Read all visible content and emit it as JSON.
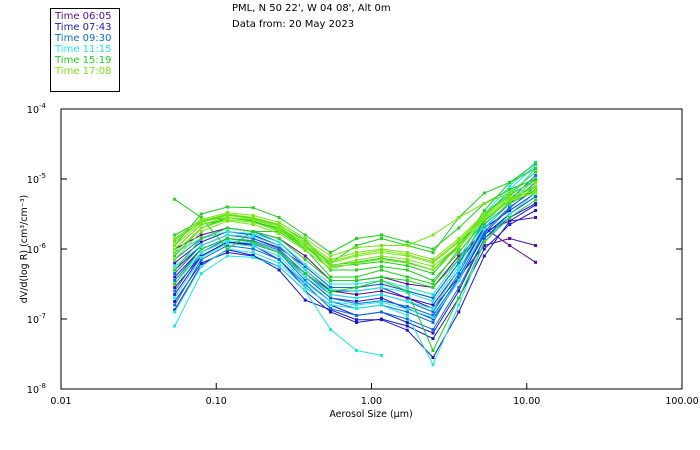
{
  "header": {
    "line1": "PML, N 50 22', W 04 08', Alt 0m",
    "line2": "Data from: 20 May 2023"
  },
  "legend": [
    {
      "label": "Time 06:05",
      "color": "#5a0a96"
    },
    {
      "label": "Time 07:43",
      "color": "#1a1acc"
    },
    {
      "label": "Time 09:30",
      "color": "#0a6ee0"
    },
    {
      "label": "Time 11:15",
      "color": "#1ee6e6"
    },
    {
      "label": "Time 15:19",
      "color": "#1ed21e"
    },
    {
      "label": "Time 17:08",
      "color": "#78e614"
    }
  ],
  "chart_data": {
    "type": "line",
    "xscale": "log",
    "yscale": "log",
    "xlabel": "Aerosol Size (µm)",
    "ylabel": "dV/d(log R) (cm³/cm⁻³)",
    "xlim": [
      0.01,
      100
    ],
    "ylim": [
      1e-08,
      0.0001
    ],
    "xticks": [
      {
        "value": 0.01,
        "label": "0.01"
      },
      {
        "value": 0.1,
        "label": "0.10"
      },
      {
        "value": 1,
        "label": "1.00"
      },
      {
        "value": 10,
        "label": "10.00"
      },
      {
        "value": 100,
        "label": "100.00"
      }
    ],
    "yticks": [
      {
        "value": 0.0001,
        "base": "10",
        "exp": "-4"
      },
      {
        "value": 1e-05,
        "base": "10",
        "exp": "-5"
      },
      {
        "value": 1e-06,
        "base": "10",
        "exp": "-6"
      },
      {
        "value": 1e-07,
        "base": "10",
        "exp": "-7"
      },
      {
        "value": 1e-08,
        "base": "10",
        "exp": "-8"
      }
    ],
    "grid": false,
    "legend_position": "top-left",
    "x": [
      0.054,
      0.08,
      0.118,
      0.173,
      0.254,
      0.374,
      0.545,
      0.8,
      1.16,
      1.7,
      2.49,
      3.65,
      5.33,
      7.77,
      11.4
    ],
    "value_units": "log10 of dV/d(log R)",
    "series": [
      {
        "name": "Time 06:05",
        "color": "#5a0a96",
        "curves": [
          [
            -6.3,
            -5.95,
            -5.8,
            -5.85,
            -5.98,
            -6.25,
            -6.55,
            -6.55,
            -6.5,
            -6.6,
            -6.7,
            -6.2,
            -5.7,
            -5.95,
            -6.19
          ],
          [
            -6.55,
            -6.1,
            -5.9,
            -5.93,
            -6.05,
            -6.35,
            -6.6,
            -6.65,
            -6.6,
            -6.7,
            -6.85,
            -6.4,
            -5.95,
            -5.85,
            -5.95
          ],
          [
            -6.0,
            -5.8,
            -5.7,
            -5.75,
            -5.85,
            -6.1,
            -6.45,
            -6.45,
            -6.4,
            -6.5,
            -6.55,
            -6.1,
            -5.75,
            -5.6,
            -5.55
          ]
        ]
      },
      {
        "name": "Time 07:43",
        "color": "#1a1acc",
        "curves": [
          [
            -6.87,
            -6.23,
            -6.01,
            -6.09,
            -6.3,
            -6.73,
            -6.87,
            -7.01,
            -7.01,
            -7.16,
            -7.55,
            -6.9,
            -6.1,
            -5.6,
            -5.37
          ],
          [
            -6.65,
            -6.1,
            -5.9,
            -5.95,
            -6.15,
            -6.55,
            -6.8,
            -6.95,
            -6.9,
            -7.05,
            -7.2,
            -6.6,
            -5.85,
            -5.55,
            -5.35
          ],
          [
            -6.4,
            -6.0,
            -5.85,
            -5.9,
            -6.05,
            -6.4,
            -6.7,
            -6.75,
            -6.7,
            -6.85,
            -7.0,
            -6.45,
            -5.8,
            -5.5,
            -5.25
          ],
          [
            -6.2,
            -5.9,
            -5.75,
            -5.8,
            -5.95,
            -6.3,
            -6.6,
            -6.6,
            -6.55,
            -6.7,
            -6.8,
            -6.3,
            -5.7,
            -5.45,
            -5.2
          ],
          [
            -6.75,
            -6.2,
            -6.05,
            -6.1,
            -6.25,
            -6.6,
            -6.9,
            -7.05,
            -7.0,
            -7.1,
            -7.28,
            -6.7,
            -6.0,
            -5.65,
            -5.45
          ]
        ]
      },
      {
        "name": "Time 09:30",
        "color": "#0a6ee0",
        "curves": [
          [
            -6.6,
            -6.05,
            -5.85,
            -5.9,
            -6.05,
            -6.45,
            -6.75,
            -6.85,
            -6.8,
            -6.9,
            -7.05,
            -6.4,
            -5.75,
            -5.4,
            -5.15
          ],
          [
            -6.35,
            -5.95,
            -5.8,
            -5.85,
            -6.0,
            -6.35,
            -6.65,
            -6.7,
            -6.65,
            -6.75,
            -6.9,
            -6.35,
            -5.7,
            -5.35,
            -5.05
          ],
          [
            -6.15,
            -5.85,
            -5.7,
            -5.75,
            -5.9,
            -6.25,
            -6.55,
            -6.55,
            -6.5,
            -6.6,
            -6.7,
            -6.2,
            -5.6,
            -5.3,
            -4.95
          ],
          [
            -6.8,
            -6.15,
            -5.95,
            -6.0,
            -6.15,
            -6.5,
            -6.85,
            -6.95,
            -6.9,
            -7.0,
            -7.15,
            -6.55,
            -5.85,
            -5.5,
            -5.25
          ],
          [
            -6.45,
            -6.0,
            -5.85,
            -5.88,
            -6.02,
            -6.4,
            -6.7,
            -6.78,
            -6.74,
            -6.82,
            -6.95,
            -6.42,
            -5.78,
            -5.42,
            -5.1
          ]
        ]
      },
      {
        "name": "Time 11:15",
        "color": "#1ee6e6",
        "curves": [
          [
            -7.1,
            -6.35,
            -6.1,
            -6.12,
            -6.25,
            -6.6,
            -7.15,
            -7.45,
            -7.52,
            null,
            null,
            null,
            null,
            null,
            null
          ],
          [
            -6.9,
            -6.25,
            -6.0,
            -6.05,
            -6.2,
            -6.55,
            -6.8,
            -6.85,
            -6.8,
            -6.95,
            -7.65,
            -6.8,
            -5.9,
            -5.5,
            -5.2
          ],
          [
            -6.5,
            -6.05,
            -5.88,
            -5.92,
            -6.05,
            -6.4,
            -6.65,
            -6.7,
            -6.65,
            -6.75,
            -6.85,
            -6.3,
            -5.65,
            -5.25,
            -4.85
          ],
          [
            -6.25,
            -5.95,
            -5.8,
            -5.82,
            -5.95,
            -6.3,
            -6.58,
            -6.6,
            -6.55,
            -6.62,
            -6.75,
            -6.25,
            -5.55,
            -5.15,
            -4.8
          ],
          [
            -6.05,
            -5.85,
            -5.75,
            -5.78,
            -5.9,
            -6.22,
            -6.5,
            -6.5,
            -6.45,
            -6.55,
            -6.65,
            -6.15,
            -5.5,
            -5.1,
            -4.76
          ],
          [
            -6.7,
            -6.12,
            -5.92,
            -5.96,
            -6.1,
            -6.48,
            -6.75,
            -6.8,
            -6.76,
            -6.86,
            -6.98,
            -6.45,
            -5.72,
            -5.32,
            -5.0
          ]
        ]
      },
      {
        "name": "Time 15:19",
        "color": "#1ed21e",
        "curves": [
          [
            -5.29,
            -5.55,
            -6.0,
            -5.75,
            -5.75,
            -5.95,
            -6.25,
            -6.22,
            -6.18,
            -6.24,
            -6.35,
            -5.95,
            -5.5,
            -5.2,
            -4.9
          ],
          [
            -5.87,
            -5.61,
            -5.51,
            -5.56,
            -5.66,
            -5.87,
            -6.23,
            -6.19,
            -6.13,
            -6.19,
            -6.3,
            -5.94,
            -5.51,
            -5.23,
            -5.01
          ],
          [
            -5.95,
            -5.5,
            -5.4,
            -5.41,
            -5.55,
            -5.8,
            -6.05,
            -5.85,
            -5.8,
            -5.9,
            -6.0,
            -5.7,
            -5.35,
            -5.15,
            -5.0
          ],
          [
            -6.1,
            -5.7,
            -5.55,
            -5.6,
            -5.72,
            -5.95,
            -6.3,
            -6.3,
            -6.25,
            -6.3,
            -6.45,
            -6.05,
            -5.6,
            -5.3,
            -5.1
          ],
          [
            -6.3,
            -5.85,
            -5.7,
            -5.75,
            -5.85,
            -6.15,
            -6.45,
            -6.45,
            -6.4,
            -6.45,
            -6.55,
            -6.15,
            -5.65,
            -5.35,
            -5.15
          ],
          [
            -6.5,
            -6.0,
            -5.85,
            -5.9,
            -6.05,
            -6.35,
            -6.61,
            -6.55,
            -6.45,
            -6.6,
            -7.45,
            -6.7,
            -5.9,
            -5.55,
            -5.3
          ],
          [
            -5.8,
            -5.6,
            -5.55,
            -5.6,
            -5.75,
            -6.0,
            -6.4,
            -6.4,
            -6.3,
            -6.4,
            -6.5,
            -6.0,
            -5.45,
            -5.05,
            -4.78
          ],
          [
            -6.0,
            -5.65,
            -5.58,
            -5.62,
            -5.7,
            -5.92,
            -6.2,
            -5.95,
            -5.85,
            -5.95,
            -6.05,
            -5.55,
            -5.2,
            -5.05,
            -4.85
          ]
        ]
      },
      {
        "name": "Time 17:08",
        "color": "#78e614",
        "curves": [
          [
            -5.9,
            -5.6,
            -5.5,
            -5.55,
            -5.65,
            -5.9,
            -6.15,
            -6.05,
            -6.0,
            -6.05,
            -6.15,
            -5.85,
            -5.5,
            -5.25,
            -5.1
          ],
          [
            -6.0,
            -5.65,
            -5.55,
            -5.58,
            -5.7,
            -5.95,
            -6.2,
            -6.1,
            -6.05,
            -6.1,
            -6.2,
            -5.9,
            -5.55,
            -5.3,
            -5.15
          ],
          [
            -5.85,
            -5.58,
            -5.48,
            -5.52,
            -5.62,
            -5.85,
            -6.1,
            -5.98,
            -5.95,
            -5.95,
            -5.8,
            -5.55,
            -5.35,
            -5.2,
            -5.05
          ],
          [
            -6.15,
            -5.75,
            -5.6,
            -5.65,
            -5.78,
            -6.02,
            -6.28,
            -6.2,
            -6.15,
            -6.2,
            -6.3,
            -5.98,
            -5.58,
            -5.32,
            -5.18
          ],
          [
            -5.95,
            -5.62,
            -5.52,
            -5.57,
            -5.68,
            -5.92,
            -6.18,
            -6.08,
            -6.02,
            -6.08,
            -6.18,
            -5.88,
            -5.52,
            -5.28,
            -5.12
          ],
          [
            -6.05,
            -5.7,
            -5.58,
            -5.62,
            -5.74,
            -5.98,
            -6.24,
            -6.16,
            -6.1,
            -6.15,
            -6.25,
            -5.95,
            -5.56,
            -5.3,
            -5.2
          ]
        ]
      }
    ]
  }
}
